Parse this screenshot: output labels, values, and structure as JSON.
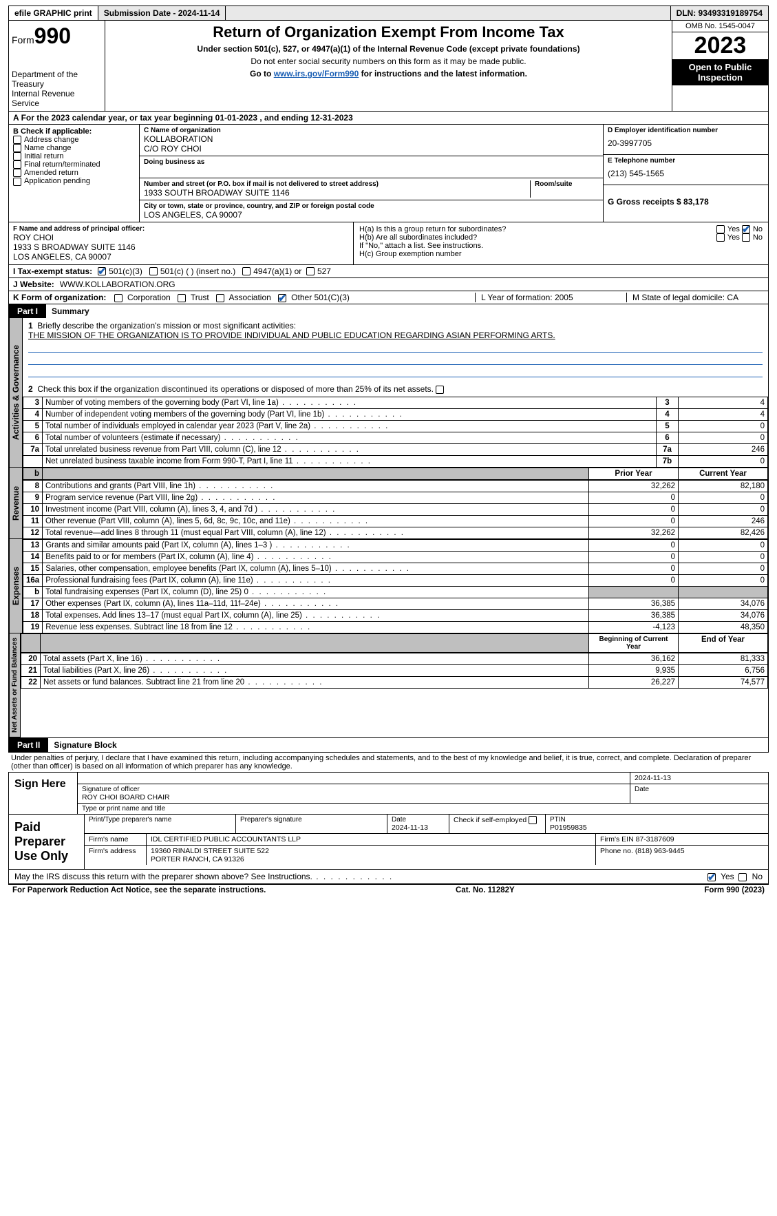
{
  "top": {
    "efile": "efile GRAPHIC print",
    "submission": "Submission Date - 2024-11-14",
    "dln": "DLN: 93493319189754"
  },
  "header": {
    "form_prefix": "Form",
    "form_num": "990",
    "title": "Return of Organization Exempt From Income Tax",
    "subtitle": "Under section 501(c), 527, or 4947(a)(1) of the Internal Revenue Code (except private foundations)",
    "note1": "Do not enter social security numbers on this form as it may be made public.",
    "note2_pre": "Go to ",
    "note2_link": "www.irs.gov/Form990",
    "note2_post": " for instructions and the latest information.",
    "dept": "Department of the Treasury",
    "irs": "Internal Revenue Service",
    "omb": "OMB No. 1545-0047",
    "year": "2023",
    "inspect": "Open to Public Inspection"
  },
  "a": {
    "line": "For the 2023 calendar year, or tax year beginning 01-01-2023   , and ending 12-31-2023",
    "b_label": "B Check if applicable:",
    "b_items": [
      "Address change",
      "Name change",
      "Initial return",
      "Final return/terminated",
      "Amended return",
      "Application pending"
    ],
    "c_label": "C Name of organization",
    "c_name": "KOLLABORATION",
    "c_co": "C/O ROY CHOI",
    "dba_label": "Doing business as",
    "addr_label": "Number and street (or P.O. box if mail is not delivered to street address)",
    "room_label": "Room/suite",
    "addr": "1933 SOUTH BROADWAY SUITE 1146",
    "city_label": "City or town, state or province, country, and ZIP or foreign postal code",
    "city": "LOS ANGELES, CA  90007",
    "d_label": "D Employer identification number",
    "d_val": "20-3997705",
    "e_label": "E Telephone number",
    "e_val": "(213) 545-1565",
    "g_label": "G Gross receipts $ 83,178",
    "f_label": "F  Name and address of principal officer:",
    "f_name": "ROY CHOI",
    "f_addr1": "1933 S BROADWAY SUITE 1146",
    "f_addr2": "LOS ANGELES, CA  90007",
    "ha": "H(a)  Is this a group return for subordinates?",
    "hb": "H(b)  Are all subordinates included?",
    "hb_note": "If \"No,\" attach a list. See instructions.",
    "hc": "H(c)  Group exemption number",
    "yes": "Yes",
    "no": "No"
  },
  "status": {
    "i_label": "I    Tax-exempt status:",
    "opt1": "501(c)(3)",
    "opt2": "501(c) (  ) (insert no.)",
    "opt3": "4947(a)(1) or",
    "opt4": "527",
    "j_label": "J    Website:",
    "j_val": "WWW.KOLLABORATION.ORG"
  },
  "k": {
    "label": "K Form of organization:",
    "opts": [
      "Corporation",
      "Trust",
      "Association",
      "Other 501(C)(3)"
    ],
    "l": "L Year of formation: 2005",
    "m": "M State of legal domicile: CA"
  },
  "part1": {
    "header": "Part I",
    "title": "Summary",
    "vert_gov": "Activities & Governance",
    "vert_rev": "Revenue",
    "vert_exp": "Expenses",
    "vert_net": "Net Assets or Fund Balances",
    "l1_label": "Briefly describe the organization's mission or most significant activities:",
    "l1_mission": "THE MISSION OF THE ORGANIZATION IS TO PROVIDE INDIVIDUAL AND PUBLIC EDUCATION REGARDING ASIAN PERFORMING ARTS.",
    "l2": "Check this box        if the organization discontinued its operations or disposed of more than 25% of its net assets.",
    "rows_gov": [
      {
        "n": "3",
        "t": "Number of voting members of the governing body (Part VI, line 1a)",
        "box": "3",
        "v": "4"
      },
      {
        "n": "4",
        "t": "Number of independent voting members of the governing body (Part VI, line 1b)",
        "box": "4",
        "v": "4"
      },
      {
        "n": "5",
        "t": "Total number of individuals employed in calendar year 2023 (Part V, line 2a)",
        "box": "5",
        "v": "0"
      },
      {
        "n": "6",
        "t": "Total number of volunteers (estimate if necessary)",
        "box": "6",
        "v": "0"
      },
      {
        "n": "7a",
        "t": "Total unrelated business revenue from Part VIII, column (C), line 12",
        "box": "7a",
        "v": "246"
      },
      {
        "n": "",
        "t": "Net unrelated business taxable income from Form 990-T, Part I, line 11",
        "box": "7b",
        "v": "0"
      }
    ],
    "col_prior": "Prior Year",
    "col_current": "Current Year",
    "rows_rev": [
      {
        "n": "8",
        "t": "Contributions and grants (Part VIII, line 1h)",
        "p": "32,262",
        "c": "82,180"
      },
      {
        "n": "9",
        "t": "Program service revenue (Part VIII, line 2g)",
        "p": "0",
        "c": "0"
      },
      {
        "n": "10",
        "t": "Investment income (Part VIII, column (A), lines 3, 4, and 7d )",
        "p": "0",
        "c": "0"
      },
      {
        "n": "11",
        "t": "Other revenue (Part VIII, column (A), lines 5, 6d, 8c, 9c, 10c, and 11e)",
        "p": "0",
        "c": "246"
      },
      {
        "n": "12",
        "t": "Total revenue—add lines 8 through 11 (must equal Part VIII, column (A), line 12)",
        "p": "32,262",
        "c": "82,426"
      }
    ],
    "rows_exp": [
      {
        "n": "13",
        "t": "Grants and similar amounts paid (Part IX, column (A), lines 1–3 )",
        "p": "0",
        "c": "0"
      },
      {
        "n": "14",
        "t": "Benefits paid to or for members (Part IX, column (A), line 4)",
        "p": "0",
        "c": "0"
      },
      {
        "n": "15",
        "t": "Salaries, other compensation, employee benefits (Part IX, column (A), lines 5–10)",
        "p": "0",
        "c": "0"
      },
      {
        "n": "16a",
        "t": "Professional fundraising fees (Part IX, column (A), line 11e)",
        "p": "0",
        "c": "0"
      },
      {
        "n": "b",
        "t": "Total fundraising expenses (Part IX, column (D), line 25) 0",
        "p": "shade",
        "c": "shade"
      },
      {
        "n": "17",
        "t": "Other expenses (Part IX, column (A), lines 11a–11d, 11f–24e)",
        "p": "36,385",
        "c": "34,076"
      },
      {
        "n": "18",
        "t": "Total expenses. Add lines 13–17 (must equal Part IX, column (A), line 25)",
        "p": "36,385",
        "c": "34,076"
      },
      {
        "n": "19",
        "t": "Revenue less expenses. Subtract line 18 from line 12",
        "p": "-4,123",
        "c": "48,350"
      }
    ],
    "col_begin": "Beginning of Current Year",
    "col_end": "End of Year",
    "rows_net": [
      {
        "n": "20",
        "t": "Total assets (Part X, line 16)",
        "p": "36,162",
        "c": "81,333"
      },
      {
        "n": "21",
        "t": "Total liabilities (Part X, line 26)",
        "p": "9,935",
        "c": "6,756"
      },
      {
        "n": "22",
        "t": "Net assets or fund balances. Subtract line 21 from line 20",
        "p": "26,227",
        "c": "74,577"
      }
    ]
  },
  "part2": {
    "header": "Part II",
    "title": "Signature Block",
    "decl": "Under penalties of perjury, I declare that I have examined this return, including accompanying schedules and statements, and to the best of my knowledge and belief, it is true, correct, and complete. Declaration of preparer (other than officer) is based on all information of which preparer has any knowledge.",
    "sign_here": "Sign Here",
    "sig_officer": "Signature of officer",
    "officer_name": "ROY CHOI BOARD CHAIR",
    "type_name": "Type or print name and title",
    "date": "Date",
    "date_val": "2024-11-13",
    "paid": "Paid Preparer Use Only",
    "prep_name_label": "Print/Type preparer's name",
    "prep_sig_label": "Preparer's signature",
    "date2": "2024-11-13",
    "check_self": "Check         if self-employed",
    "ptin_label": "PTIN",
    "ptin": "P01959835",
    "firm_name_label": "Firm's name",
    "firm_name": "IDL CERTIFIED PUBLIC ACCOUNTANTS LLP",
    "firm_ein_label": "Firm's EIN",
    "firm_ein": "87-3187609",
    "firm_addr_label": "Firm's address",
    "firm_addr1": "19360 RINALDI STREET SUITE 522",
    "firm_addr2": "PORTER RANCH, CA  91326",
    "phone_label": "Phone no.",
    "phone": "(818) 963-9445",
    "may_irs": "May the IRS discuss this return with the preparer shown above? See Instructions."
  },
  "footer": {
    "pra": "For Paperwork Reduction Act Notice, see the separate instructions.",
    "cat": "Cat. No. 11282Y",
    "form": "Form 990 (2023)"
  }
}
